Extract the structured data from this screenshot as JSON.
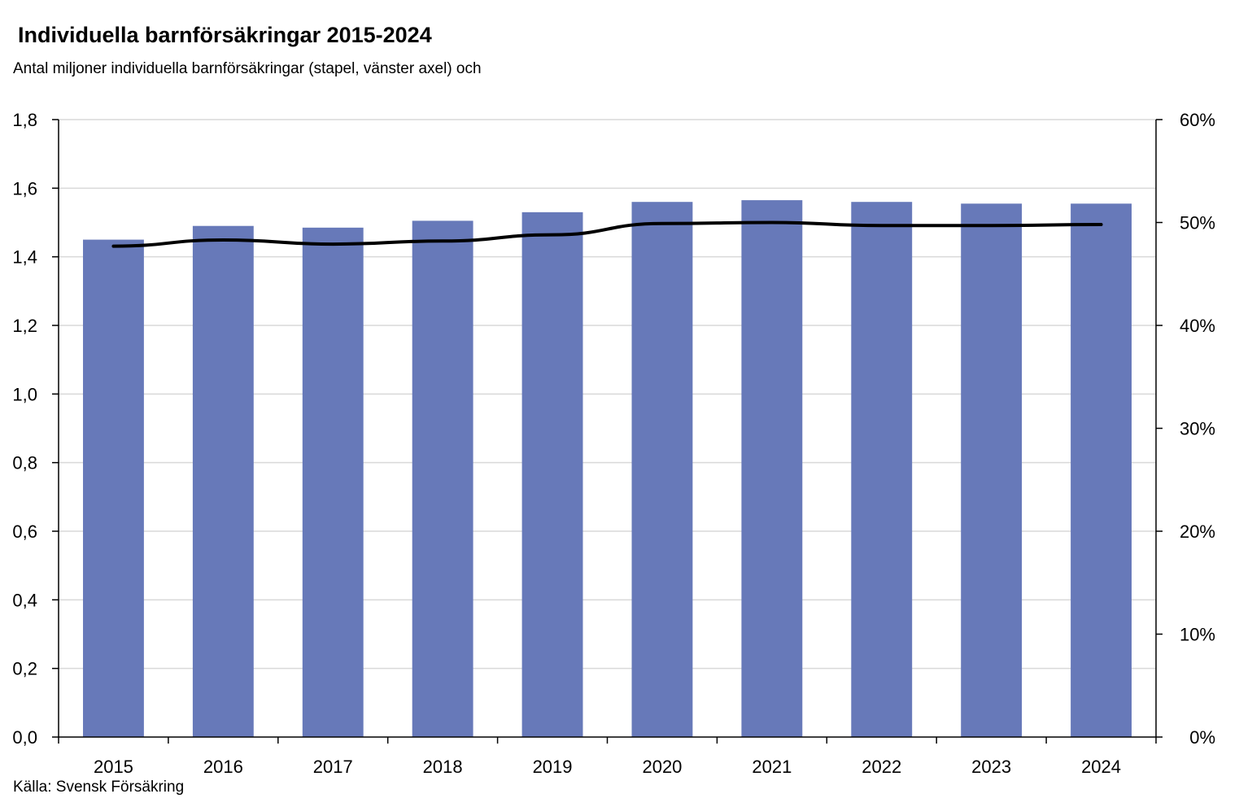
{
  "title": "Individuella barnförsäkringar 2015-2024",
  "subtitle": "Antal miljoner individuella barnförsäkringar (stapel, vänster axel) och",
  "source": "Källa: Svensk Försäkring",
  "colors": {
    "bar": "#6779b9",
    "line": "#000000",
    "grid": "#d9d9d9"
  },
  "chart_data": {
    "type": "bar",
    "categories": [
      "2015",
      "2016",
      "2017",
      "2018",
      "2019",
      "2020",
      "2021",
      "2022",
      "2023",
      "2024"
    ],
    "series": [
      {
        "type": "bar",
        "axis": "left",
        "values": [
          1.45,
          1.49,
          1.485,
          1.505,
          1.53,
          1.56,
          1.565,
          1.56,
          1.555,
          1.555
        ]
      },
      {
        "type": "line",
        "axis": "right",
        "values": [
          0.477,
          0.483,
          0.479,
          0.482,
          0.488,
          0.499,
          0.5,
          0.497,
          0.497,
          0.498
        ]
      }
    ],
    "y_left": {
      "min": 0,
      "max": 1.8,
      "step": 0.2,
      "tick_labels": [
        "0,0",
        "0,2",
        "0,4",
        "0,6",
        "0,8",
        "1,0",
        "1,2",
        "1,4",
        "1,6",
        "1,8"
      ]
    },
    "y_right": {
      "min": 0,
      "max": 0.6,
      "step": 0.1,
      "tick_labels": [
        "0%",
        "10%",
        "20%",
        "30%",
        "40%",
        "50%",
        "60%"
      ]
    },
    "grid": true
  }
}
